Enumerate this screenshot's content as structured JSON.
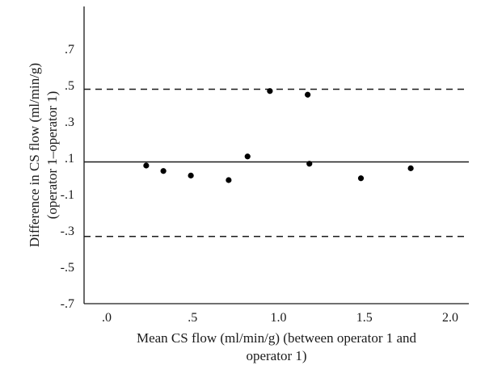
{
  "chart_data": {
    "type": "scatter",
    "title": "",
    "xlabel_lines": [
      "Mean CS flow (ml/min/g) (between operator 1 and",
      "operator 1)"
    ],
    "ylabel_lines": [
      "Difference in CS flow (ml/min/g)",
      "(operator 1–operator 1)"
    ],
    "xlim": [
      -0.13,
      2.1
    ],
    "ylim": [
      -0.7,
      0.9
    ],
    "x_ticks": [
      0.0,
      0.5,
      1.0,
      1.5,
      2.0
    ],
    "x_tick_labels": [
      ".0",
      ".5",
      "1.0",
      "1.5",
      "2.0"
    ],
    "y_ticks": [
      0.7,
      0.5,
      0.3,
      0.1,
      -0.1,
      -0.3,
      -0.5,
      -0.7
    ],
    "y_tick_labels": [
      ".7",
      ".5",
      ".3",
      ".1",
      "-.1",
      "-.3",
      "-.5",
      "-.7"
    ],
    "mean_line": 0.08,
    "limits_of_agreement": [
      0.48,
      -0.33
    ],
    "points": [
      {
        "x": 0.23,
        "y": 0.06
      },
      {
        "x": 0.33,
        "y": 0.03
      },
      {
        "x": 0.49,
        "y": 0.005
      },
      {
        "x": 0.71,
        "y": -0.02
      },
      {
        "x": 0.82,
        "y": 0.11
      },
      {
        "x": 0.95,
        "y": 0.47
      },
      {
        "x": 1.17,
        "y": 0.45
      },
      {
        "x": 1.18,
        "y": 0.07
      },
      {
        "x": 1.48,
        "y": -0.01
      },
      {
        "x": 1.77,
        "y": 0.045
      }
    ],
    "grid": false,
    "legend": "none"
  }
}
